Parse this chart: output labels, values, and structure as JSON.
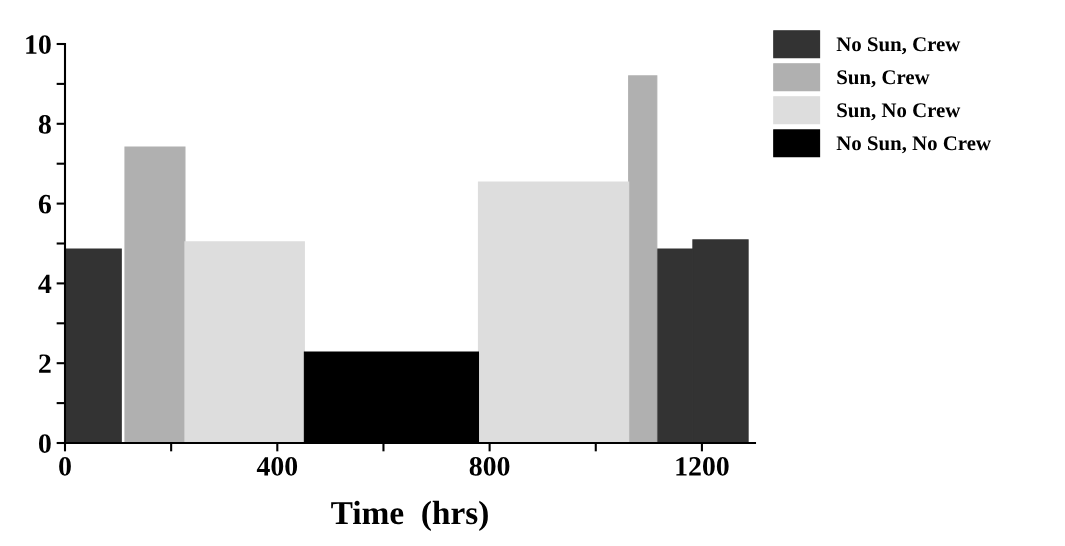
{
  "chart_data": {
    "type": "histogram",
    "xlabel": "Time  (hrs)",
    "bins": [
      0,
      106,
      113,
      226,
      451,
      779,
      1062,
      1115,
      1183,
      1287
    ],
    "series": [
      {
        "name": "No Sun, Crew",
        "color": "#333333",
        "values": [
          4.86,
          null,
          null,
          null,
          null,
          null,
          null,
          4.86,
          5.09
        ]
      },
      {
        "name": "Sun, Crew",
        "color": "#b0b0b0",
        "values": [
          null,
          null,
          7.42,
          null,
          null,
          null,
          9.2,
          null,
          null
        ]
      },
      {
        "name": "Sun, No Crew",
        "color": "#dddddd",
        "values": [
          null,
          null,
          null,
          5.04,
          null,
          6.54,
          null,
          null,
          null
        ]
      },
      {
        "name": "No Sun, No Crew",
        "color": "#000000",
        "values": [
          null,
          null,
          null,
          null,
          2.28,
          null,
          null,
          null,
          null
        ]
      }
    ],
    "xlim": [
      0,
      1300
    ],
    "ylim": [
      0,
      10
    ],
    "xticks": [
      0,
      {
        "value": 200,
        "label": null
      },
      400,
      {
        "value": 600,
        "label": null
      },
      800,
      {
        "value": 1000,
        "label": null
      },
      1200
    ],
    "yticks": [
      0,
      {
        "value": 1,
        "label": null
      },
      2,
      {
        "value": 3,
        "label": null
      },
      4,
      {
        "value": 5,
        "label": null
      },
      6,
      {
        "value": 7,
        "label": null
      },
      8,
      {
        "value": 9,
        "label": null
      },
      10
    ],
    "grid": false,
    "legend": "top right"
  }
}
